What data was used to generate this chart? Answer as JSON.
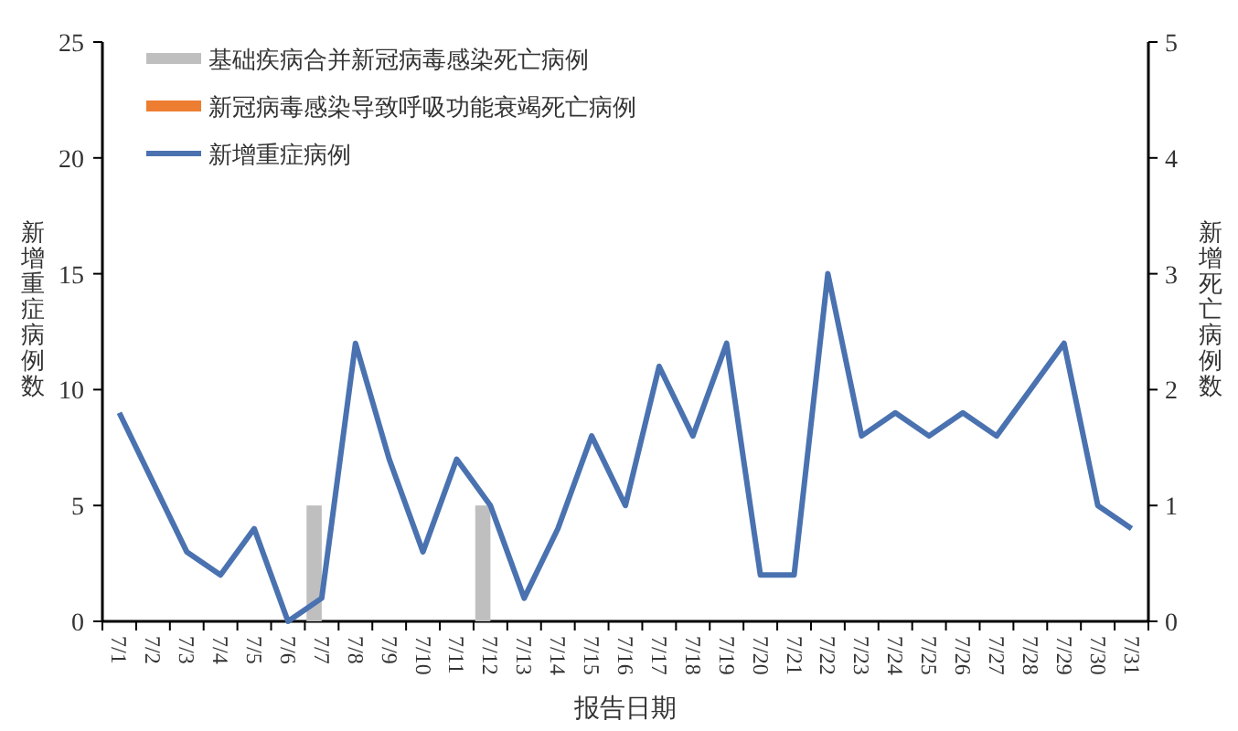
{
  "chart_data": {
    "type": "line",
    "xlabel": "报告日期",
    "ylabel": "新增重症病例数",
    "y2label": "新增死亡病例数",
    "categories": [
      "7/1",
      "7/2",
      "7/3",
      "7/4",
      "7/5",
      "7/6",
      "7/7",
      "7/8",
      "7/9",
      "7/10",
      "7/11",
      "7/12",
      "7/13",
      "7/14",
      "7/15",
      "7/16",
      "7/17",
      "7/18",
      "7/19",
      "7/20",
      "7/21",
      "7/22",
      "7/23",
      "7/24",
      "7/25",
      "7/26",
      "7/27",
      "7/28",
      "7/29",
      "7/30",
      "7/31"
    ],
    "series": [
      {
        "name": "基础疾病合并新冠病毒感染死亡病例",
        "type": "bar",
        "axis": "y2",
        "color": "#bfbfbf",
        "values": [
          null,
          null,
          null,
          null,
          null,
          null,
          1,
          null,
          null,
          null,
          null,
          1,
          null,
          null,
          null,
          null,
          null,
          null,
          null,
          null,
          null,
          null,
          null,
          null,
          null,
          null,
          null,
          null,
          null,
          null,
          null
        ]
      },
      {
        "name": "新冠病毒感染导致呼吸功能衰竭死亡病例",
        "type": "bar",
        "axis": "y2",
        "color": "#ed7d31",
        "values": [
          null,
          null,
          null,
          null,
          null,
          null,
          null,
          null,
          null,
          null,
          null,
          null,
          null,
          null,
          null,
          null,
          null,
          null,
          null,
          null,
          null,
          null,
          null,
          null,
          null,
          null,
          null,
          null,
          null,
          null,
          null
        ]
      },
      {
        "name": "新增重症病例",
        "color": "#4a72b0",
        "values": [
          9,
          6,
          3,
          2,
          4,
          0,
          1,
          12,
          7,
          3,
          7,
          5,
          1,
          4,
          8,
          5,
          11,
          8,
          12,
          2,
          2,
          15,
          8,
          9,
          8,
          9,
          8,
          10,
          12,
          5,
          4
        ]
      }
    ],
    "ylim": [
      0,
      25
    ],
    "yticks": [
      0,
      5,
      10,
      15,
      20,
      25
    ],
    "y2lim": [
      0,
      5
    ],
    "y2ticks": [
      0,
      1,
      2,
      3,
      4,
      5
    ],
    "legend": "top left",
    "grid": false,
    "marker": "none",
    "line_style": "solid"
  }
}
